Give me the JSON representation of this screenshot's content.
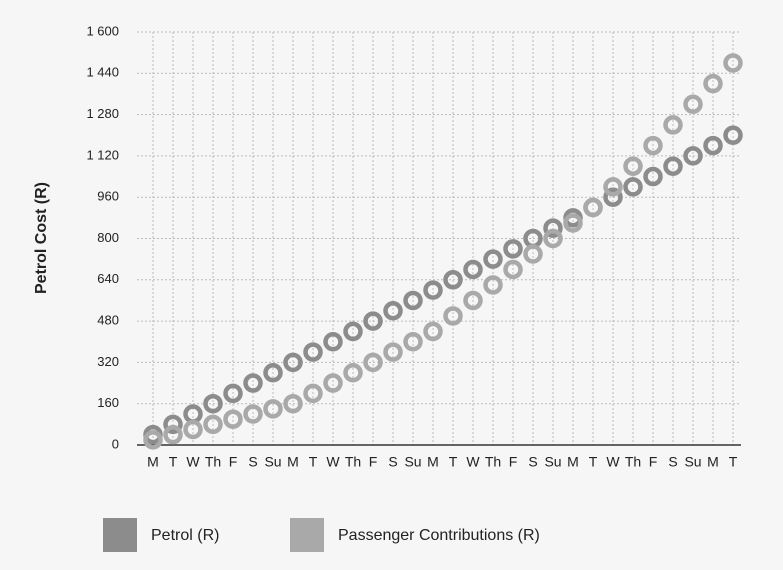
{
  "chart_data": {
    "type": "line",
    "y_label": "Petrol Cost (R)",
    "categories": [
      "M",
      "T",
      "W",
      "Th",
      "F",
      "S",
      "Su",
      "M",
      "T",
      "W",
      "Th",
      "F",
      "S",
      "Su",
      "M",
      "T",
      "W",
      "Th",
      "F",
      "S",
      "Su",
      "M",
      "T",
      "W",
      "Th",
      "F",
      "S",
      "Su",
      "M",
      "T"
    ],
    "series": [
      {
        "name": "Petrol (R)",
        "color": "#8c8c8c",
        "values": [
          40,
          80,
          120,
          160,
          200,
          240,
          280,
          320,
          360,
          400,
          440,
          480,
          520,
          560,
          600,
          640,
          680,
          720,
          760,
          800,
          840,
          880,
          920,
          960,
          1000,
          1040,
          1080,
          1120,
          1160,
          1200
        ]
      },
      {
        "name": "Passenger Contributions (R)",
        "color": "#a9a9a9",
        "values": [
          20,
          40,
          60,
          80,
          100,
          120,
          140,
          160,
          200,
          240,
          280,
          320,
          360,
          400,
          440,
          500,
          560,
          620,
          680,
          740,
          800,
          860,
          920,
          1000,
          1080,
          1160,
          1240,
          1320,
          1400,
          1480
        ]
      }
    ],
    "ylim": [
      0,
      1600
    ],
    "yticks": [
      0,
      160,
      320,
      480,
      640,
      800,
      960,
      {
        "value": 1120,
        "label": "1 120"
      },
      {
        "value": 1280,
        "label": "1 280"
      },
      {
        "value": 1440,
        "label": "1 440"
      },
      {
        "value": 1600,
        "label": "1 600"
      }
    ],
    "grid": true
  }
}
